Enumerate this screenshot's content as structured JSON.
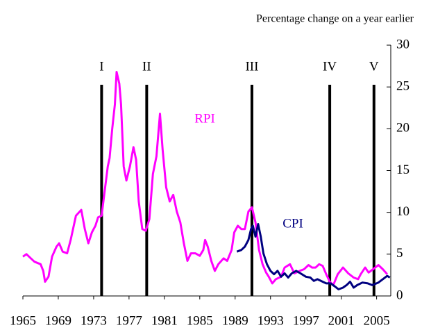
{
  "chart_data": {
    "type": "line",
    "subtitle": "Percentage change on a year earlier",
    "xlim": [
      1965,
      2006.6
    ],
    "xticks": [
      1965,
      1969,
      1973,
      1977,
      1981,
      1985,
      1989,
      1993,
      1997,
      2001,
      2005
    ],
    "ylim": [
      0,
      30
    ],
    "yticks": [
      0,
      5,
      10,
      15,
      20,
      25,
      30
    ],
    "y_axis_side": "right",
    "annotations": [
      {
        "label": "I",
        "x": 1973.9
      },
      {
        "label": "II",
        "x": 1979.0
      },
      {
        "label": "III",
        "x": 1990.9
      },
      {
        "label": "IV",
        "x": 1999.7
      },
      {
        "label": "V",
        "x": 2004.7
      }
    ],
    "series": [
      {
        "name": "RPI",
        "color": "#ff00ff",
        "x": [
          1965.0,
          1965.4,
          1965.9,
          1966.3,
          1967.0,
          1967.3,
          1967.5,
          1967.9,
          1968.3,
          1968.8,
          1969.1,
          1969.5,
          1970.0,
          1970.4,
          1971.0,
          1971.6,
          1972.0,
          1972.4,
          1972.8,
          1973.2,
          1973.5,
          1973.9,
          1974.3,
          1974.6,
          1974.8,
          1975.1,
          1975.4,
          1975.6,
          1975.9,
          1976.1,
          1976.4,
          1976.7,
          1977.1,
          1977.5,
          1977.8,
          1978.1,
          1978.5,
          1978.9,
          1979.3,
          1979.7,
          1980.1,
          1980.5,
          1980.8,
          1981.2,
          1981.6,
          1982.0,
          1982.4,
          1982.8,
          1983.2,
          1983.6,
          1984.0,
          1984.5,
          1985.0,
          1985.4,
          1985.6,
          1985.9,
          1986.3,
          1986.7,
          1987.1,
          1987.7,
          1988.1,
          1988.6,
          1988.9,
          1989.3,
          1989.7,
          1990.1,
          1990.5,
          1990.9,
          1991.3,
          1991.7,
          1992.1,
          1992.5,
          1992.8,
          1993.2,
          1993.6,
          1994.2,
          1994.6,
          1995.2,
          1995.7,
          1996.3,
          1996.8,
          1997.3,
          1997.7,
          1998.1,
          1998.5,
          1998.9,
          1999.3,
          1999.7,
          2000.1,
          2000.6,
          2001.2,
          2001.8,
          2002.4,
          2002.9,
          2003.2,
          2003.7,
          2004.1,
          2004.6,
          2005.2,
          2005.7,
          2006.2
        ],
        "values": [
          4.7,
          5.0,
          4.5,
          4.1,
          3.8,
          3.0,
          1.7,
          2.3,
          4.7,
          5.9,
          6.3,
          5.3,
          5.1,
          6.7,
          9.6,
          10.3,
          8.0,
          6.3,
          7.6,
          8.4,
          9.4,
          9.6,
          13.0,
          15.5,
          16.5,
          20.0,
          22.9,
          26.8,
          25.4,
          22.9,
          15.5,
          13.8,
          15.5,
          17.8,
          16.3,
          11.3,
          8.0,
          7.8,
          9.2,
          14.6,
          16.7,
          21.8,
          17.5,
          13.0,
          11.3,
          12.1,
          10.1,
          8.8,
          6.3,
          4.2,
          5.1,
          5.1,
          4.8,
          5.5,
          6.7,
          5.9,
          4.2,
          3.0,
          3.8,
          4.5,
          4.2,
          5.5,
          7.6,
          8.4,
          8.0,
          8.0,
          10.1,
          10.6,
          8.8,
          5.5,
          3.8,
          2.8,
          2.3,
          1.5,
          2.0,
          2.3,
          3.4,
          3.8,
          2.7,
          3.0,
          3.2,
          3.7,
          3.4,
          3.4,
          3.8,
          3.6,
          2.6,
          1.7,
          1.3,
          2.6,
          3.4,
          2.7,
          2.2,
          2.0,
          2.6,
          3.4,
          2.8,
          3.2,
          3.7,
          3.2,
          2.6
        ]
      },
      {
        "name": "CPI",
        "color": "#000080",
        "x": [
          1989.2,
          1989.7,
          1990.1,
          1990.5,
          1990.8,
          1991.0,
          1991.3,
          1991.6,
          1991.9,
          1992.2,
          1992.6,
          1993.0,
          1993.4,
          1993.8,
          1994.2,
          1994.6,
          1995.0,
          1995.4,
          1995.9,
          1996.4,
          1997.0,
          1997.5,
          1997.9,
          1998.3,
          1998.9,
          1999.3,
          1999.8,
          2000.2,
          2000.7,
          2001.2,
          2001.6,
          2002.0,
          2002.4,
          2002.8,
          2003.4,
          2004.0,
          2004.5,
          2005.2,
          2005.7,
          2006.2,
          2006.5
        ],
        "values": [
          5.3,
          5.5,
          5.9,
          6.7,
          8.0,
          8.4,
          7.1,
          8.6,
          7.1,
          5.1,
          3.8,
          3.0,
          2.6,
          3.0,
          2.3,
          2.7,
          2.2,
          2.7,
          3.0,
          2.7,
          2.3,
          2.2,
          1.8,
          2.0,
          1.7,
          1.5,
          1.5,
          1.2,
          0.8,
          1.0,
          1.3,
          1.7,
          1.0,
          1.3,
          1.6,
          1.5,
          1.3,
          1.6,
          2.0,
          2.4,
          2.2
        ]
      }
    ]
  }
}
